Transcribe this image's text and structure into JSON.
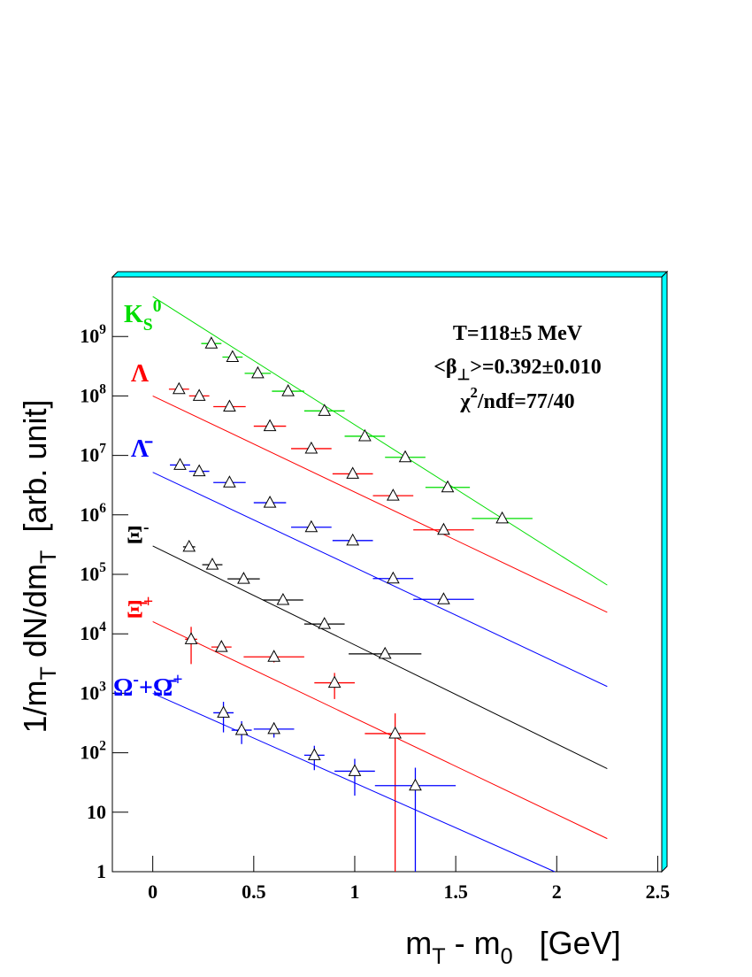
{
  "chart_data": {
    "type": "scatter",
    "log_y": true,
    "xlim": [
      -0.2,
      2.52
    ],
    "ylim": [
      1,
      10000000000
    ],
    "xticks": [
      0,
      0.5,
      1,
      1.5,
      2,
      2.5
    ],
    "yticks": [
      1,
      10,
      {
        "value": 100,
        "label": "10^2"
      },
      {
        "value": 1000,
        "label": "10^3"
      },
      {
        "value": 10000,
        "label": "10^4"
      },
      {
        "value": 100000,
        "label": "10^5"
      },
      {
        "value": 1000000,
        "label": "10^6"
      },
      {
        "value": 10000000,
        "label": "10^7"
      },
      {
        "value": 100000000,
        "label": "10^8"
      },
      {
        "value": 1000000000,
        "label": "10^9"
      }
    ],
    "x_label": "m_T - m_0   [GeV]",
    "y_label": "1/m_T dN/dm_T  [arb. unit]",
    "annotations": [
      "T=118±5 MeV",
      "<β_⊥>=0.392±0.010",
      "χ^2/ndf=77/40"
    ],
    "series": [
      {
        "name": "K_S^0",
        "color": "#00dd00",
        "x": [
          0.29,
          0.395,
          0.52,
          0.67,
          0.85,
          1.05,
          1.25,
          1.46,
          1.73
        ],
        "x_errors": [
          0.05,
          0.05,
          0.065,
          0.08,
          0.1,
          0.1,
          0.1,
          0.11,
          0.15
        ],
        "values": [
          760000000,
          450000000,
          240000000,
          120000000,
          56000000,
          21000000,
          9300000,
          2900000,
          870000
        ],
        "fit_x": [
          0,
          2.25
        ],
        "fit_values": [
          4700000000,
          66000
        ]
      },
      {
        "name": "Λ",
        "color": "#ff0000",
        "x": [
          0.13,
          0.23,
          0.38,
          0.58,
          0.785,
          0.99,
          1.19,
          1.44
        ],
        "x_errors": [
          0.05,
          0.05,
          0.08,
          0.08,
          0.1,
          0.1,
          0.1,
          0.15
        ],
        "values": [
          130000000,
          100000000,
          66000000,
          31000000,
          13000000,
          4900000,
          2100000,
          560000
        ],
        "fit_x": [
          0,
          2.25
        ],
        "fit_values": [
          100000000,
          23000
        ]
      },
      {
        "name": "Λ̄",
        "color": "#0000ff",
        "x": [
          0.135,
          0.23,
          0.38,
          0.58,
          0.785,
          0.99,
          1.19,
          1.44
        ],
        "x_errors": [
          0.05,
          0.05,
          0.08,
          0.08,
          0.1,
          0.1,
          0.1,
          0.15
        ],
        "values": [
          6900000,
          5400000,
          3500000,
          1600000,
          620000,
          370000,
          85000,
          38000
        ],
        "fit_x": [
          0,
          2.25
        ],
        "fit_values": [
          5200000,
          1300
        ]
      },
      {
        "name": "Ξ^-",
        "color": "#000000",
        "x": [
          0.18,
          0.295,
          0.45,
          0.645,
          0.85,
          1.15
        ],
        "x_errors": [
          0.03,
          0.05,
          0.08,
          0.1,
          0.1,
          0.18
        ],
        "values": [
          290000,
          145000,
          84000,
          37000,
          14600,
          4600
        ],
        "fit_x": [
          0,
          2.25
        ],
        "fit_values": [
          300000,
          54
        ]
      },
      {
        "name": "Ξ̄^+",
        "color": "#ff0000",
        "x": [
          0.19,
          0.34,
          0.6,
          0.9,
          1.2
        ],
        "x_errors": [
          0.03,
          0.05,
          0.15,
          0.1,
          0.15
        ],
        "values": [
          8100,
          6000,
          4100,
          1500,
          210
        ],
        "y_errors": [
          5000,
          1000,
          800,
          700,
          250
        ],
        "fit_x": [
          0,
          2.25
        ],
        "fit_values": [
          16000,
          3.6
        ]
      },
      {
        "name": "Ω^-+Ω̄^+",
        "color": "#0000ff",
        "x": [
          0.35,
          0.44,
          0.6,
          0.8,
          1.0,
          1.3
        ],
        "x_errors": [
          0.05,
          0.05,
          0.1,
          0.05,
          0.1,
          0.2
        ],
        "values": [
          470,
          240,
          250,
          91,
          49,
          28
        ],
        "y_errors": [
          250,
          100,
          70,
          40,
          30,
          28
        ],
        "fit_x": [
          0,
          1.99
        ],
        "fit_values": [
          1000,
          1
        ]
      }
    ]
  }
}
